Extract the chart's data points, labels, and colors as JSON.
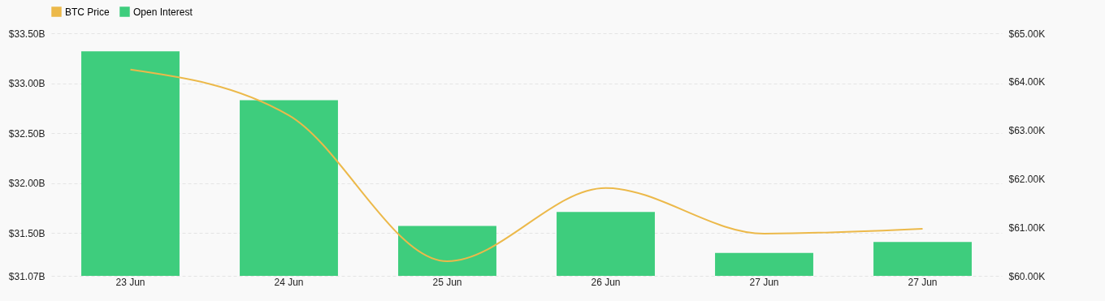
{
  "chart_data": {
    "type": "bar",
    "categories": [
      "23 Jun",
      "24 Jun",
      "25 Jun",
      "26 Jun",
      "27 Jun",
      "27 Jun"
    ],
    "series": [
      {
        "name": "BTC Price",
        "type": "line",
        "axis": "y2",
        "color": "#ecb94a",
        "values": [
          64.25,
          63.31,
          60.3,
          61.81,
          60.87,
          60.97
        ]
      },
      {
        "name": "Open Interest",
        "color": "#3ecd7d",
        "values": [
          33.32,
          32.83,
          31.57,
          31.71,
          31.3,
          31.41
        ]
      }
    ],
    "ylim": [
      31.07,
      33.5
    ],
    "yticks": [
      {
        "value": 31.07,
        "label": "$31.07B"
      },
      {
        "value": 31.5,
        "label": "$31.50B"
      },
      {
        "value": 32,
        "label": "$32.00B"
      },
      {
        "value": 32.5,
        "label": "$32.50B"
      },
      {
        "value": 33,
        "label": "$33.00B"
      },
      {
        "value": 33.5,
        "label": "$33.50B"
      }
    ],
    "y2lim": [
      60,
      65
    ],
    "y2ticks": [
      {
        "value": 60,
        "label": "$60.00K"
      },
      {
        "value": 61,
        "label": "$61.00K"
      },
      {
        "value": 62,
        "label": "$62.00K"
      },
      {
        "value": 63,
        "label": "$63.00K"
      },
      {
        "value": 64,
        "label": "$64.00K"
      },
      {
        "value": 65,
        "label": "$65.00K"
      }
    ],
    "grid": "y",
    "legend": "top"
  }
}
